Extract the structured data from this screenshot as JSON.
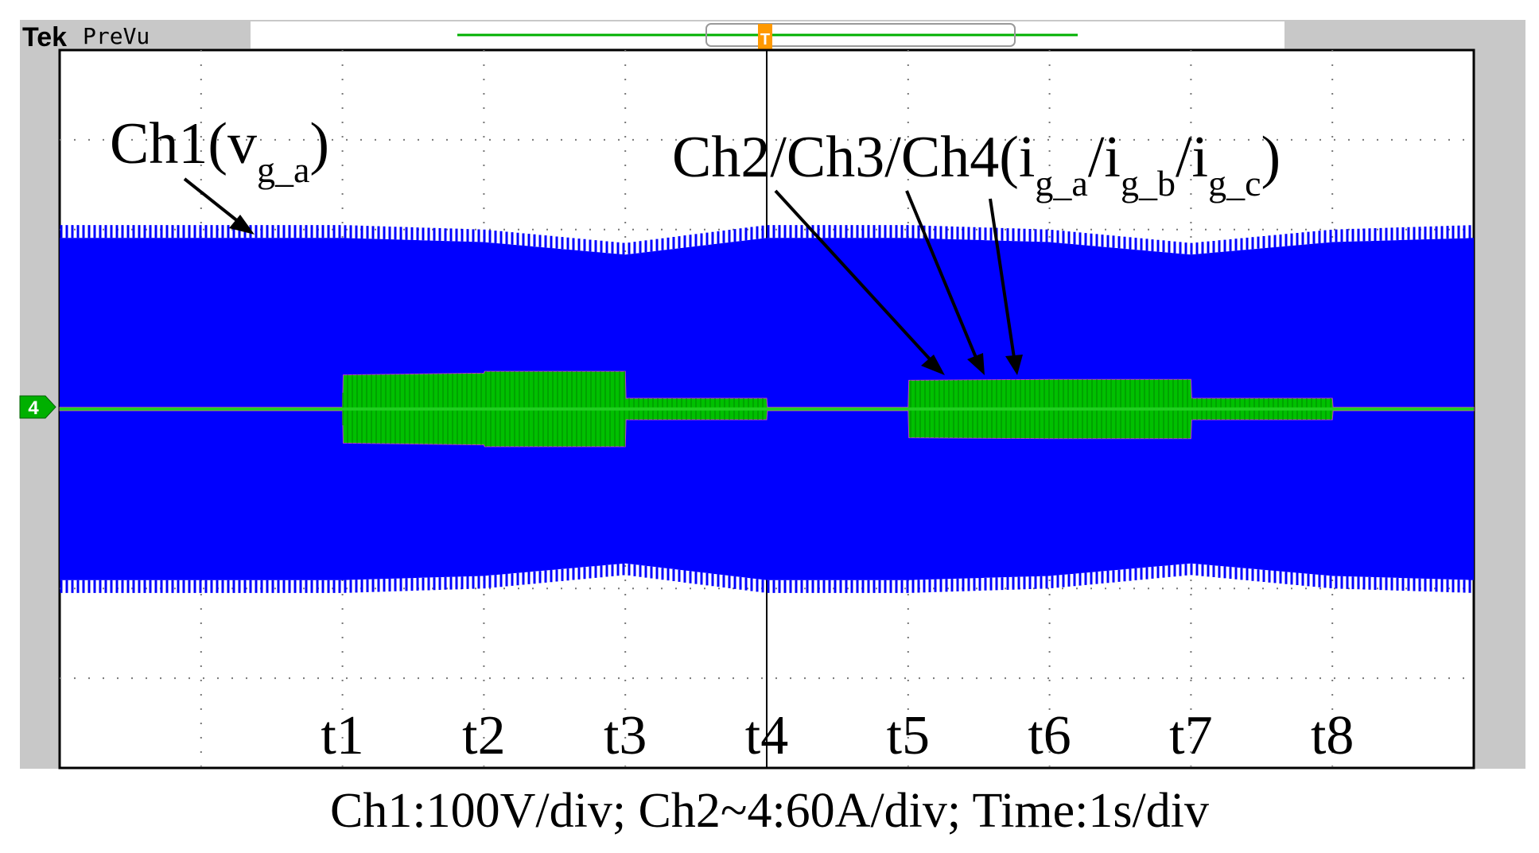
{
  "header": {
    "brand": "Tek",
    "mode": "PreVu",
    "trigger_marker": "T"
  },
  "colors": {
    "frame": "#c8c8c8",
    "screen": "#ffffff",
    "ch1": "#0000ff",
    "ch2_4": "#00c000",
    "grid": "#555555",
    "trigger": "#ff9900"
  },
  "channel_marker": "4",
  "annotations": {
    "ch1": {
      "main": "Ch1(v",
      "sub": "g_a",
      "close": ")"
    },
    "ch2_4": {
      "main": "Ch2/Ch3/Ch4(",
      "i1": "i",
      "s1": "g_a",
      "i2": "/i",
      "s2": "g_b",
      "i3": "/i",
      "s3": "g_c",
      "close": ")"
    }
  },
  "caption": "Ch1:100V/div; Ch2~4:60A/div; Time:1s/div",
  "chart_data": {
    "type": "line",
    "x_unit": "s",
    "x_divisions": 10,
    "y_divisions": 8,
    "xlim": [
      0,
      10
    ],
    "ylim": [
      -4,
      4
    ],
    "time_markers": [
      {
        "label": "t1",
        "x": 4
      },
      {
        "label": "t2",
        "x": 6
      },
      {
        "label": "t3",
        "x": 8
      },
      {
        "label": "t4",
        "x": 10
      },
      {
        "label": "t5",
        "x": 12
      },
      {
        "label": "t6",
        "x": 14
      },
      {
        "label": "t7",
        "x": 16
      },
      {
        "label": "t8",
        "x": 18
      }
    ],
    "time_span": [
      0,
      20
    ],
    "series": [
      {
        "name": "Ch1(vg_a)",
        "scale": "100V/div",
        "envelope": [
          {
            "t": 0,
            "amp": 2.05
          },
          {
            "t": 4,
            "amp": 2.05
          },
          {
            "t": 6,
            "amp": 2.0
          },
          {
            "t": 8,
            "amp": 1.85
          },
          {
            "t": 10,
            "amp": 2.05
          },
          {
            "t": 12,
            "amp": 2.05
          },
          {
            "t": 14,
            "amp": 2.0
          },
          {
            "t": 16,
            "amp": 1.85
          },
          {
            "t": 18,
            "amp": 2.0
          },
          {
            "t": 20,
            "amp": 2.05
          }
        ]
      },
      {
        "name": "Ch2/Ch3/Ch4(ig_a/ig_b/ig_c)",
        "scale": "60A/div",
        "envelope": [
          {
            "t": 0,
            "amp": 0.02
          },
          {
            "t": 4,
            "amp": 0.02
          },
          {
            "t": 4.01,
            "amp": 0.38
          },
          {
            "t": 6,
            "amp": 0.4
          },
          {
            "t": 6.01,
            "amp": 0.42
          },
          {
            "t": 8,
            "amp": 0.42
          },
          {
            "t": 8.01,
            "amp": 0.12
          },
          {
            "t": 10,
            "amp": 0.12
          },
          {
            "t": 10.01,
            "amp": 0.02
          },
          {
            "t": 12,
            "amp": 0.02
          },
          {
            "t": 12.01,
            "amp": 0.32
          },
          {
            "t": 14,
            "amp": 0.33
          },
          {
            "t": 16,
            "amp": 0.33
          },
          {
            "t": 16.01,
            "amp": 0.12
          },
          {
            "t": 18,
            "amp": 0.12
          },
          {
            "t": 18.01,
            "amp": 0.02
          },
          {
            "t": 20,
            "amp": 0.02
          }
        ]
      }
    ]
  }
}
